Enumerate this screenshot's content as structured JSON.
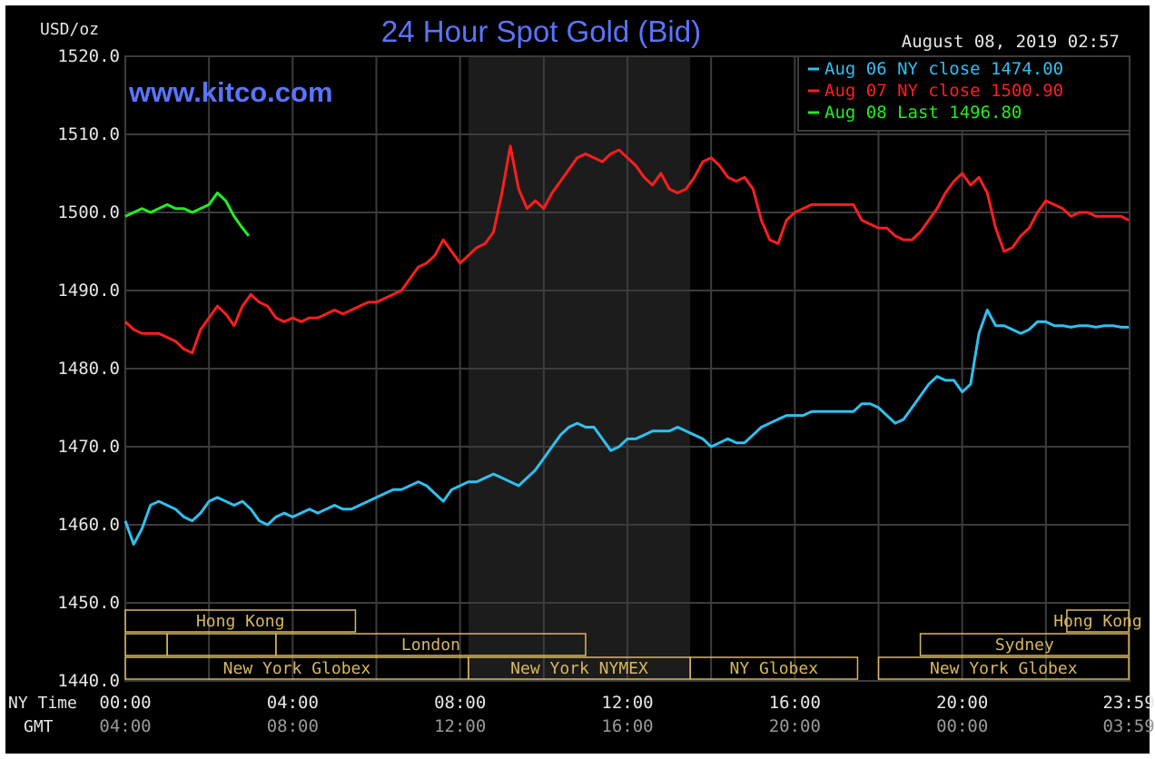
{
  "chart_data": {
    "type": "line",
    "title": "24 Hour Spot Gold (Bid)",
    "watermark": "www.kitco.com",
    "timestamp": "August 08, 2019 02:57",
    "ylabel": "USD/oz",
    "ylim": [
      1440,
      1520
    ],
    "yticks": [
      "1520.0",
      "1510.0",
      "1500.0",
      "1490.0",
      "1480.0",
      "1470.0",
      "1460.0",
      "1450.0",
      "1440.0"
    ],
    "xlim": [
      0,
      24
    ],
    "x_row_labels": {
      "ny": "NY Time",
      "gmt": "GMT"
    },
    "xticks_ny": [
      "00:00",
      "04:00",
      "08:00",
      "12:00",
      "16:00",
      "20:00",
      "23:59"
    ],
    "xticks_gmt": [
      "04:00",
      "08:00",
      "12:00",
      "16:00",
      "20:00",
      "00:00",
      "03:59"
    ],
    "grid": true,
    "legend_position": "top-right",
    "shaded_interval_hours": [
      8.2,
      13.5
    ],
    "colors": {
      "background": "#000000",
      "grid": "#3c3c3c",
      "title": "#5a74ff",
      "text": "#e8e8e8",
      "muted": "#9a9a9a",
      "session_box": "#d8b860"
    },
    "series": [
      {
        "name": "Aug 06 NY close 1474.00",
        "color": "#30c0f0",
        "x": [
          0,
          0.2,
          0.4,
          0.6,
          0.8,
          1.0,
          1.2,
          1.4,
          1.6,
          1.8,
          2.0,
          2.2,
          2.4,
          2.6,
          2.8,
          3.0,
          3.2,
          3.4,
          3.6,
          3.8,
          4.0,
          4.2,
          4.4,
          4.6,
          4.8,
          5.0,
          5.2,
          5.4,
          5.6,
          5.8,
          6.0,
          6.2,
          6.4,
          6.6,
          6.8,
          7.0,
          7.2,
          7.4,
          7.6,
          7.8,
          8.0,
          8.2,
          8.4,
          8.6,
          8.8,
          9.0,
          9.2,
          9.4,
          9.6,
          9.8,
          10.0,
          10.2,
          10.4,
          10.6,
          10.8,
          11.0,
          11.2,
          11.4,
          11.6,
          11.8,
          12.0,
          12.2,
          12.4,
          12.6,
          12.8,
          13.0,
          13.2,
          13.4,
          13.6,
          13.8,
          14.0,
          14.2,
          14.4,
          14.6,
          14.8,
          15.0,
          15.2,
          15.4,
          15.6,
          15.8,
          16.0,
          16.2,
          16.4,
          16.6,
          16.8,
          17.0,
          17.2,
          17.4,
          17.6,
          17.8,
          18.0,
          18.2,
          18.4,
          18.6,
          18.8,
          19.0,
          19.2,
          19.4,
          19.6,
          19.8,
          20.0,
          20.2,
          20.4,
          20.6,
          20.8,
          21.0,
          21.2,
          21.4,
          21.6,
          21.8,
          22.0,
          22.2,
          22.4,
          22.6,
          22.8,
          23.0,
          23.2,
          23.4,
          23.6,
          23.8,
          23.98
        ],
        "values": [
          1460.5,
          1457.5,
          1459.5,
          1462.5,
          1463.0,
          1462.5,
          1462.0,
          1461.0,
          1460.5,
          1461.5,
          1463.0,
          1463.5,
          1463.0,
          1462.5,
          1463.0,
          1462.0,
          1460.5,
          1460.0,
          1461.0,
          1461.5,
          1461.0,
          1461.5,
          1462.0,
          1461.5,
          1462.0,
          1462.5,
          1462.0,
          1462.0,
          1462.5,
          1463.0,
          1463.5,
          1464.0,
          1464.5,
          1464.5,
          1465.0,
          1465.5,
          1465.0,
          1464.0,
          1463.0,
          1464.5,
          1465.0,
          1465.5,
          1465.5,
          1466.0,
          1466.5,
          1466.0,
          1465.5,
          1465.0,
          1466.0,
          1467.0,
          1468.5,
          1470.0,
          1471.5,
          1472.5,
          1473.0,
          1472.5,
          1472.5,
          1471.0,
          1469.5,
          1470.0,
          1471.0,
          1471.0,
          1471.5,
          1472.0,
          1472.0,
          1472.0,
          1472.5,
          1472.0,
          1471.5,
          1471.0,
          1470.0,
          1470.5,
          1471.0,
          1470.5,
          1470.5,
          1471.5,
          1472.5,
          1473.0,
          1473.5,
          1474.0,
          1474.0,
          1474.0,
          1474.5,
          1474.5,
          1474.5,
          1474.5,
          1474.5,
          1474.5,
          1475.5,
          1475.5,
          1475.0,
          1474.0,
          1473.0,
          1473.5,
          1475.0,
          1476.5,
          1478.0,
          1479.0,
          1478.5,
          1478.5,
          1477.0,
          1478.0,
          1484.5,
          1487.5,
          1485.5,
          1485.5,
          1485.0,
          1484.5,
          1485.0,
          1486.0,
          1486.0,
          1485.5,
          1485.5,
          1485.3,
          1485.5,
          1485.5,
          1485.3,
          1485.5,
          1485.5,
          1485.3,
          1485.3
        ],
        "note_x_step_hours": 0.2
      },
      {
        "name": "Aug 07 NY close 1500.90",
        "color": "#ff1e1e",
        "x": [
          0,
          0.2,
          0.4,
          0.6,
          0.8,
          1.0,
          1.2,
          1.4,
          1.6,
          1.8,
          2.0,
          2.2,
          2.4,
          2.6,
          2.8,
          3.0,
          3.2,
          3.4,
          3.6,
          3.8,
          4.0,
          4.2,
          4.4,
          4.6,
          4.8,
          5.0,
          5.2,
          5.4,
          5.6,
          5.8,
          6.0,
          6.2,
          6.4,
          6.6,
          6.8,
          7.0,
          7.2,
          7.4,
          7.6,
          7.8,
          8.0,
          8.2,
          8.4,
          8.6,
          8.8,
          9.0,
          9.2,
          9.4,
          9.6,
          9.8,
          10.0,
          10.2,
          10.4,
          10.6,
          10.8,
          11.0,
          11.2,
          11.4,
          11.6,
          11.8,
          12.0,
          12.2,
          12.4,
          12.6,
          12.8,
          13.0,
          13.2,
          13.4,
          13.6,
          13.8,
          14.0,
          14.2,
          14.4,
          14.6,
          14.8,
          15.0,
          15.2,
          15.4,
          15.6,
          15.8,
          16.0,
          16.2,
          16.4,
          16.6,
          16.8,
          17.0,
          17.2,
          17.4,
          17.6,
          17.8,
          18.0,
          18.2,
          18.4,
          18.6,
          18.8,
          19.0,
          19.2,
          19.4,
          19.6,
          19.8,
          20.0,
          20.2,
          20.4,
          20.6,
          20.8,
          21.0,
          21.2,
          21.4,
          21.6,
          21.8,
          22.0,
          22.2,
          22.4,
          22.6,
          22.8,
          23.0,
          23.2,
          23.4,
          23.6,
          23.8,
          23.98
        ],
        "values": [
          1486.0,
          1485.0,
          1484.5,
          1484.5,
          1484.5,
          1484.0,
          1483.5,
          1482.5,
          1482.0,
          1485.0,
          1486.5,
          1488.0,
          1487.0,
          1485.5,
          1488.0,
          1489.5,
          1488.5,
          1488.0,
          1486.5,
          1486.0,
          1486.5,
          1486.0,
          1486.5,
          1486.5,
          1487.0,
          1487.5,
          1487.0,
          1487.5,
          1488.0,
          1488.5,
          1488.5,
          1489.0,
          1489.5,
          1490.0,
          1491.5,
          1493.0,
          1493.5,
          1494.5,
          1496.5,
          1495.0,
          1493.5,
          1494.5,
          1495.5,
          1496.0,
          1497.5,
          1502.5,
          1508.5,
          1503.0,
          1500.5,
          1501.5,
          1500.5,
          1502.5,
          1504.0,
          1505.5,
          1507.0,
          1507.5,
          1507.0,
          1506.5,
          1507.5,
          1508.0,
          1507.0,
          1506.0,
          1504.5,
          1503.5,
          1505.0,
          1503.0,
          1502.5,
          1503.0,
          1504.5,
          1506.5,
          1507.0,
          1506.0,
          1504.5,
          1504.0,
          1504.5,
          1503.0,
          1499.0,
          1496.5,
          1496.0,
          1499.0,
          1500.0,
          1500.5,
          1501.0,
          1501.0,
          1501.0,
          1501.0,
          1501.0,
          1501.0,
          1499.0,
          1498.5,
          1498.0,
          1498.0,
          1497.0,
          1496.5,
          1496.5,
          1497.5,
          1499.0,
          1500.5,
          1502.5,
          1504.0,
          1505.0,
          1503.5,
          1504.5,
          1502.5,
          1498.0,
          1495.0,
          1495.5,
          1497.0,
          1498.0,
          1500.0,
          1501.5,
          1501.0,
          1500.5,
          1499.5,
          1500.0,
          1500.0,
          1499.5,
          1499.5,
          1499.5,
          1499.5,
          1499.0
        ],
        "note_x_step_hours": 0.2
      },
      {
        "name": "Aug 08 Last 1496.80",
        "color": "#22ee22",
        "x": [
          0,
          0.2,
          0.4,
          0.6,
          0.8,
          1.0,
          1.2,
          1.4,
          1.6,
          1.8,
          2.0,
          2.2,
          2.4,
          2.6,
          2.8,
          2.95
        ],
        "values": [
          1499.5,
          1500.0,
          1500.5,
          1500.0,
          1500.5,
          1501.0,
          1500.5,
          1500.5,
          1500.0,
          1500.5,
          1501.0,
          1502.5,
          1501.5,
          1499.5,
          1498.0,
          1497.0
        ]
      }
    ],
    "legend": [
      {
        "prefix": "Aug 06 NY close",
        "value": "1474.00",
        "color": "#30c0f0"
      },
      {
        "prefix": "Aug 07 NY close",
        "value": "1500.90",
        "color": "#ff1e1e"
      },
      {
        "prefix": "Aug 08 Last",
        "value": "1496.80",
        "color": "#22ee22"
      }
    ],
    "sessions": [
      {
        "label": "Hong Kong",
        "row": 1,
        "start_hour": 0,
        "end_hour": 5.5
      },
      {
        "label": "",
        "row": 2,
        "start_hour": 0,
        "end_hour": 1.0
      },
      {
        "label": "",
        "row": 2,
        "start_hour": 1.0,
        "end_hour": 3.6
      },
      {
        "label": "London",
        "row": 2,
        "start_hour": 3.6,
        "end_hour": 11.0
      },
      {
        "label": "New York Globex",
        "row": 3,
        "start_hour": 0,
        "end_hour": 8.2
      },
      {
        "label": "New York NYMEX",
        "row": 3,
        "start_hour": 8.2,
        "end_hour": 13.5
      },
      {
        "label": "NY Globex",
        "row": 3,
        "start_hour": 13.5,
        "end_hour": 17.5
      },
      {
        "label": "Hong Kong",
        "row": 1,
        "start_hour": 22.5,
        "end_hour": 23.98
      },
      {
        "label": "Sydney",
        "row": 2,
        "start_hour": 19.0,
        "end_hour": 23.98
      },
      {
        "label": "New York Globex",
        "row": 3,
        "start_hour": 18.0,
        "end_hour": 23.98
      }
    ]
  }
}
